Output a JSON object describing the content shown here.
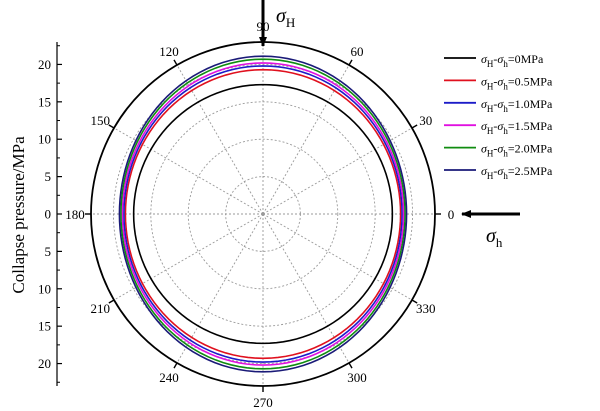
{
  "chart_data": {
    "type": "polar-line",
    "ylabel": "Collapse pressure/MPa",
    "radial_ticks": [
      "20",
      "15",
      "10",
      "5",
      "0",
      "5",
      "10",
      "15",
      "20"
    ],
    "radial_tick_values": [
      20,
      15,
      10,
      5,
      0,
      5,
      10,
      15,
      20
    ],
    "rlim": [
      0,
      23
    ],
    "angle_labels": [
      "0",
      "30",
      "60",
      "90",
      "120",
      "150",
      "180",
      "210",
      "240",
      "270",
      "300",
      "330"
    ],
    "angle_values": [
      0,
      30,
      60,
      90,
      120,
      150,
      180,
      210,
      240,
      270,
      300,
      330
    ],
    "axis_annotations": {
      "vertical": {
        "symbol": "σ",
        "subscript": "H"
      },
      "horizontal": {
        "symbol": "σ",
        "subscript": "h"
      }
    },
    "grid": true,
    "legend_position": "top-right",
    "series": [
      {
        "legend": {
          "a": "σ",
          "a_sub": "H",
          "sep": "-",
          "b": "σ",
          "b_sub": "h",
          "value": "=0MPa"
        },
        "color": "#000000",
        "r_at_0deg": 17.3,
        "r_at_90deg": 17.3
      },
      {
        "legend": {
          "a": "σ",
          "a_sub": "H",
          "sep": "-",
          "b": "σ",
          "b_sub": "h",
          "value": "=0.5MPa"
        },
        "color": "#e0101e",
        "r_at_0deg": 18.4,
        "r_at_90deg": 19.3
      },
      {
        "legend": {
          "a": "σ",
          "a_sub": "H",
          "sep": "-",
          "b": "σ",
          "b_sub": "h",
          "value": "=1.0MPa"
        },
        "color": "#1c1cc8",
        "r_at_0deg": 18.6,
        "r_at_90deg": 19.8
      },
      {
        "legend": {
          "a": "σ",
          "a_sub": "H",
          "sep": "-",
          "b": "σ",
          "b_sub": "h",
          "value": "=1.5MPa"
        },
        "color": "#e010e0",
        "r_at_0deg": 18.8,
        "r_at_90deg": 20.2
      },
      {
        "legend": {
          "a": "σ",
          "a_sub": "H",
          "sep": "-",
          "b": "σ",
          "b_sub": "h",
          "value": "=2.0MPa"
        },
        "color": "#108c10",
        "r_at_0deg": 19.0,
        "r_at_90deg": 20.7
      },
      {
        "legend": {
          "a": "σ",
          "a_sub": "H",
          "sep": "-",
          "b": "σ",
          "b_sub": "h",
          "value": "=2.5MPa"
        },
        "color": "#1a1a78",
        "r_at_0deg": 19.2,
        "r_at_90deg": 21.1
      }
    ]
  }
}
